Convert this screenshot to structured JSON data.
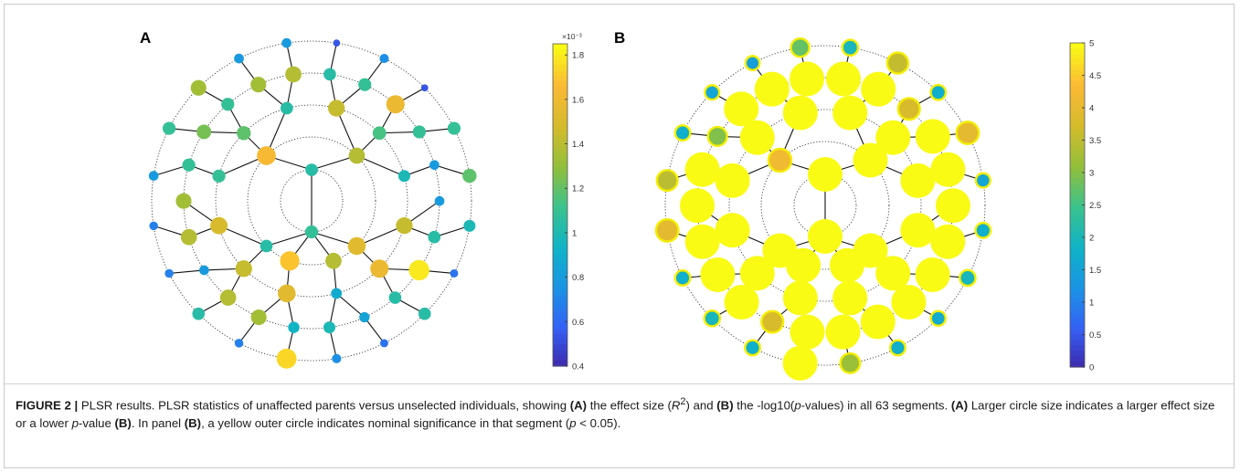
{
  "figure": {
    "panel_a_label": "A",
    "panel_b_label": "B",
    "colorbar_a": {
      "exponent_label": "×10⁻³",
      "ticks": [
        "1.8",
        "1.6",
        "1.4",
        "1.2",
        "1",
        "0.8",
        "0.6",
        "0.4"
      ],
      "range": [
        0.4,
        1.85
      ]
    },
    "colorbar_b": {
      "ticks": [
        "5",
        "4.5",
        "4",
        "3.5",
        "3",
        "2.5",
        "2",
        "1.5",
        "1",
        "0.5",
        "0"
      ],
      "range": [
        0,
        5
      ]
    },
    "colormap": [
      "#3e26a8",
      "#3560f5",
      "#1b93e5",
      "#0fb3c7",
      "#3ac28e",
      "#92bf3a",
      "#d4bb2c",
      "#fbb935",
      "#f9fb15"
    ]
  },
  "caption": {
    "figure_label": "FIGURE 2 |",
    "s1": " PLSR results. PLSR statistics of unaffected parents versus unselected individuals, showing ",
    "a1": "(A)",
    "s2": " the effect size (",
    "r": "R",
    "sup": "2",
    "s3": ") and ",
    "b1": "(B)",
    "s4": " the -log10(",
    "p1": "p",
    "s5": "-values) in all 63 segments. ",
    "a2": "(A)",
    "s6": " Larger circle size indicates a larger effect size or a lower ",
    "p2": "p",
    "s7": "-value ",
    "b2": "(B)",
    "s8": ". In panel ",
    "b3": "(B)",
    "s9": ", a yellow outer circle indicates nominal significance in that segment (",
    "p3": "p",
    "s10": " < 0.05)."
  },
  "chart_data": [
    {
      "type": "scatter",
      "title": "A",
      "description_units": "effect size R^2 per segment (×10^-3)",
      "segments": 63,
      "colorbar_ticks": [
        0.4,
        0.6,
        0.8,
        1.0,
        1.2,
        1.4,
        1.6,
        1.8
      ],
      "values": [
        1.1,
        1.05,
        1.05,
        1.65,
        1.4,
        1.55,
        1.4,
        1.7,
        1.55,
        1.45,
        1.5,
        1.1,
        1.2,
        1.05,
        1.45,
        1.15,
        1.0,
        1.45,
        1.6,
        0.9,
        0.95,
        1.35,
        1.4,
        0.8,
        1.4,
        1.35,
        1.1,
        1.25,
        1.1,
        1.35,
        1.4,
        1.05,
        1.1,
        1.6,
        1.1,
        0.8,
        0.8,
        1.05,
        1.8,
        1.05,
        0.85,
        1.0,
        1.75,
        0.7,
        1.05,
        0.7,
        0.7,
        0.8,
        1.1,
        1.35,
        0.8,
        0.8,
        0.55,
        0.75,
        0.55,
        1.1,
        1.2,
        1.0,
        0.65,
        1.05,
        0.65,
        0.75,
        1.0
      ]
    },
    {
      "type": "scatter",
      "title": "B",
      "description_units": "-log10(p-value) per segment",
      "segments": 63,
      "colorbar_ticks": [
        0,
        0.5,
        1,
        1.5,
        2,
        2.5,
        3,
        3.5,
        4,
        4.5,
        5
      ],
      "significance_threshold_p": 0.05,
      "values": [
        5,
        5,
        5,
        4.2,
        5,
        5,
        5,
        5,
        5,
        5,
        5,
        5,
        5,
        5,
        5,
        5,
        5,
        5,
        5,
        5,
        5,
        3.8,
        5,
        5,
        5,
        5,
        5,
        3.0,
        5,
        5,
        5,
        5,
        5,
        3.8,
        5,
        5,
        5,
        5,
        5,
        5,
        5,
        5,
        5,
        1.8,
        2.0,
        1.8,
        4.0,
        3.5,
        1.8,
        1.6,
        1.5,
        2.8,
        2.0,
        3.6,
        1.8,
        4.0,
        1.6,
        1.8,
        2.0,
        1.7,
        1.8,
        3.2,
        2.2
      ]
    }
  ]
}
